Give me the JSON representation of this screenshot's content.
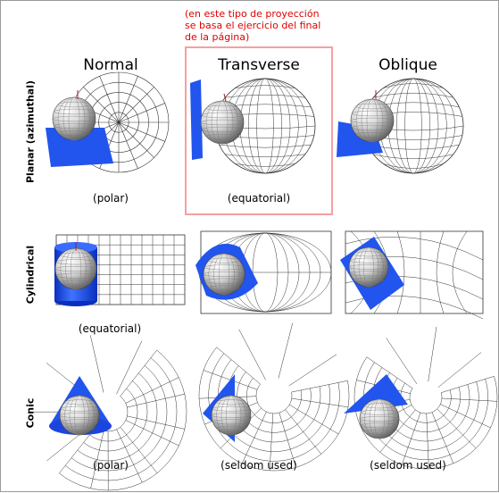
{
  "annotation": {
    "note_line1": "(en este tipo de proyección",
    "note_line2": "se basa el ejercicio del final",
    "note_line3": "de la página)"
  },
  "columns": [
    "Normal",
    "Transverse",
    "Oblique"
  ],
  "rows": [
    "Planar (azimuthal)",
    "Cylindrical",
    "Conic"
  ],
  "captions": {
    "planar_normal": "(polar)",
    "planar_transverse": "(equatorial)",
    "cylindrical_normal": "(equatorial)",
    "conic_normal": "(polar)",
    "conic_transverse": "(seldom used)",
    "conic_oblique": "(seldom used)"
  },
  "colors": {
    "surface_blue": "#2255ee",
    "note_red": "#e00000",
    "note_border": "#f4a0a0",
    "grid_line": "#333333"
  }
}
